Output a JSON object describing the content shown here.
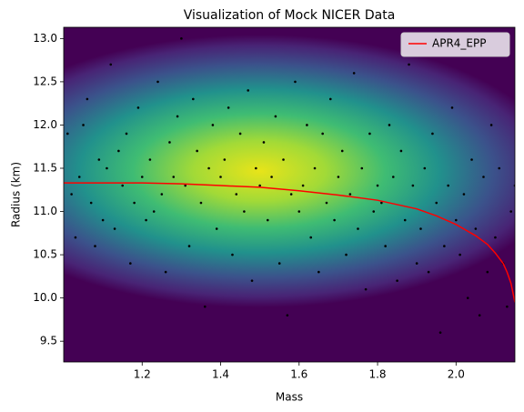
{
  "chart_data": {
    "type": "scatter",
    "title": "Visualization of Mock NICER Data",
    "xlabel": "Mass",
    "ylabel": "Radius (km)",
    "xlim": [
      1.0,
      2.15
    ],
    "ylim": [
      9.26,
      13.13
    ],
    "xticks": [
      1.2,
      1.4,
      1.6,
      1.8,
      {
        "value": 2.0,
        "label": "2.0"
      }
    ],
    "yticks": [
      9.5,
      {
        "value": 10.0,
        "label": "10.0"
      },
      10.5,
      {
        "value": 11.0,
        "label": "11.0"
      },
      11.5,
      {
        "value": 12.0,
        "label": "12.0"
      },
      12.5,
      {
        "value": 13.0,
        "label": "13.0"
      }
    ],
    "legend": "upper right",
    "series": [
      {
        "type": "scatter",
        "color": "#000000",
        "x": [
          1.01,
          1.03,
          1.04,
          1.06,
          1.07,
          1.08,
          1.09,
          1.02,
          1.05,
          1.1,
          1.11,
          1.12,
          1.13,
          1.15,
          1.16,
          1.17,
          1.18,
          1.19,
          1.14,
          1.2,
          1.21,
          1.22,
          1.24,
          1.25,
          1.26,
          1.27,
          1.28,
          1.29,
          1.23,
          1.3,
          1.31,
          1.32,
          1.33,
          1.34,
          1.35,
          1.36,
          1.37,
          1.38,
          1.39,
          1.4,
          1.41,
          1.42,
          1.43,
          1.44,
          1.45,
          1.46,
          1.47,
          1.48,
          1.49,
          1.5,
          1.51,
          1.52,
          1.53,
          1.54,
          1.55,
          1.56,
          1.57,
          1.58,
          1.59,
          1.6,
          1.61,
          1.62,
          1.63,
          1.64,
          1.65,
          1.66,
          1.67,
          1.68,
          1.69,
          1.7,
          1.71,
          1.72,
          1.73,
          1.74,
          1.75,
          1.76,
          1.77,
          1.78,
          1.79,
          1.8,
          1.81,
          1.82,
          1.83,
          1.84,
          1.85,
          1.86,
          1.87,
          1.88,
          1.89,
          1.9,
          1.91,
          1.92,
          1.93,
          1.94,
          1.95,
          1.96,
          1.97,
          1.98,
          1.99,
          2.0,
          2.01,
          2.02,
          2.03,
          2.04,
          2.05,
          2.06,
          2.07,
          2.08,
          2.09,
          2.1,
          2.11,
          2.12,
          2.13,
          2.14,
          2.15
        ],
        "values": [
          11.9,
          10.7,
          11.4,
          12.3,
          11.1,
          10.6,
          11.6,
          11.2,
          12.0,
          10.9,
          11.5,
          12.7,
          10.8,
          11.3,
          11.9,
          10.4,
          11.1,
          12.2,
          11.7,
          11.4,
          10.9,
          11.6,
          12.5,
          11.2,
          10.3,
          11.8,
          11.4,
          12.1,
          11.0,
          13.0,
          11.3,
          10.6,
          12.3,
          11.7,
          11.1,
          9.9,
          11.5,
          12.0,
          10.8,
          11.4,
          11.6,
          12.2,
          10.5,
          11.2,
          11.9,
          11.0,
          12.4,
          10.2,
          11.5,
          11.3,
          11.8,
          10.9,
          11.4,
          12.1,
          10.4,
          11.6,
          9.8,
          11.2,
          12.5,
          11.0,
          11.3,
          12.0,
          10.7,
          11.5,
          10.3,
          11.9,
          11.1,
          12.3,
          10.9,
          11.4,
          11.7,
          10.5,
          11.2,
          12.6,
          10.8,
          11.5,
          10.1,
          11.9,
          11.0,
          11.3,
          11.1,
          10.6,
          12.0,
          11.4,
          10.2,
          11.7,
          10.9,
          12.7,
          11.3,
          10.4,
          10.8,
          11.5,
          10.3,
          11.9,
          11.1,
          9.6,
          10.6,
          11.3,
          12.2,
          10.9,
          10.5,
          11.2,
          10.0,
          11.6,
          10.8,
          9.8,
          11.4,
          10.3,
          12.0,
          10.7,
          11.5,
          10.4,
          9.9,
          11.0,
          11.3
        ]
      },
      {
        "type": "line",
        "name": "APR4_EPP",
        "color": "#ff0000",
        "x": [
          1.0,
          1.1,
          1.2,
          1.3,
          1.4,
          1.5,
          1.6,
          1.7,
          1.8,
          1.9,
          1.95,
          2.0,
          2.05,
          2.08,
          2.1,
          2.12,
          2.13,
          2.14,
          2.15
        ],
        "values": [
          11.33,
          11.33,
          11.33,
          11.32,
          11.3,
          11.28,
          11.24,
          11.19,
          11.13,
          11.03,
          10.95,
          10.85,
          10.72,
          10.62,
          10.52,
          10.4,
          10.3,
          10.17,
          9.95
        ]
      }
    ]
  }
}
